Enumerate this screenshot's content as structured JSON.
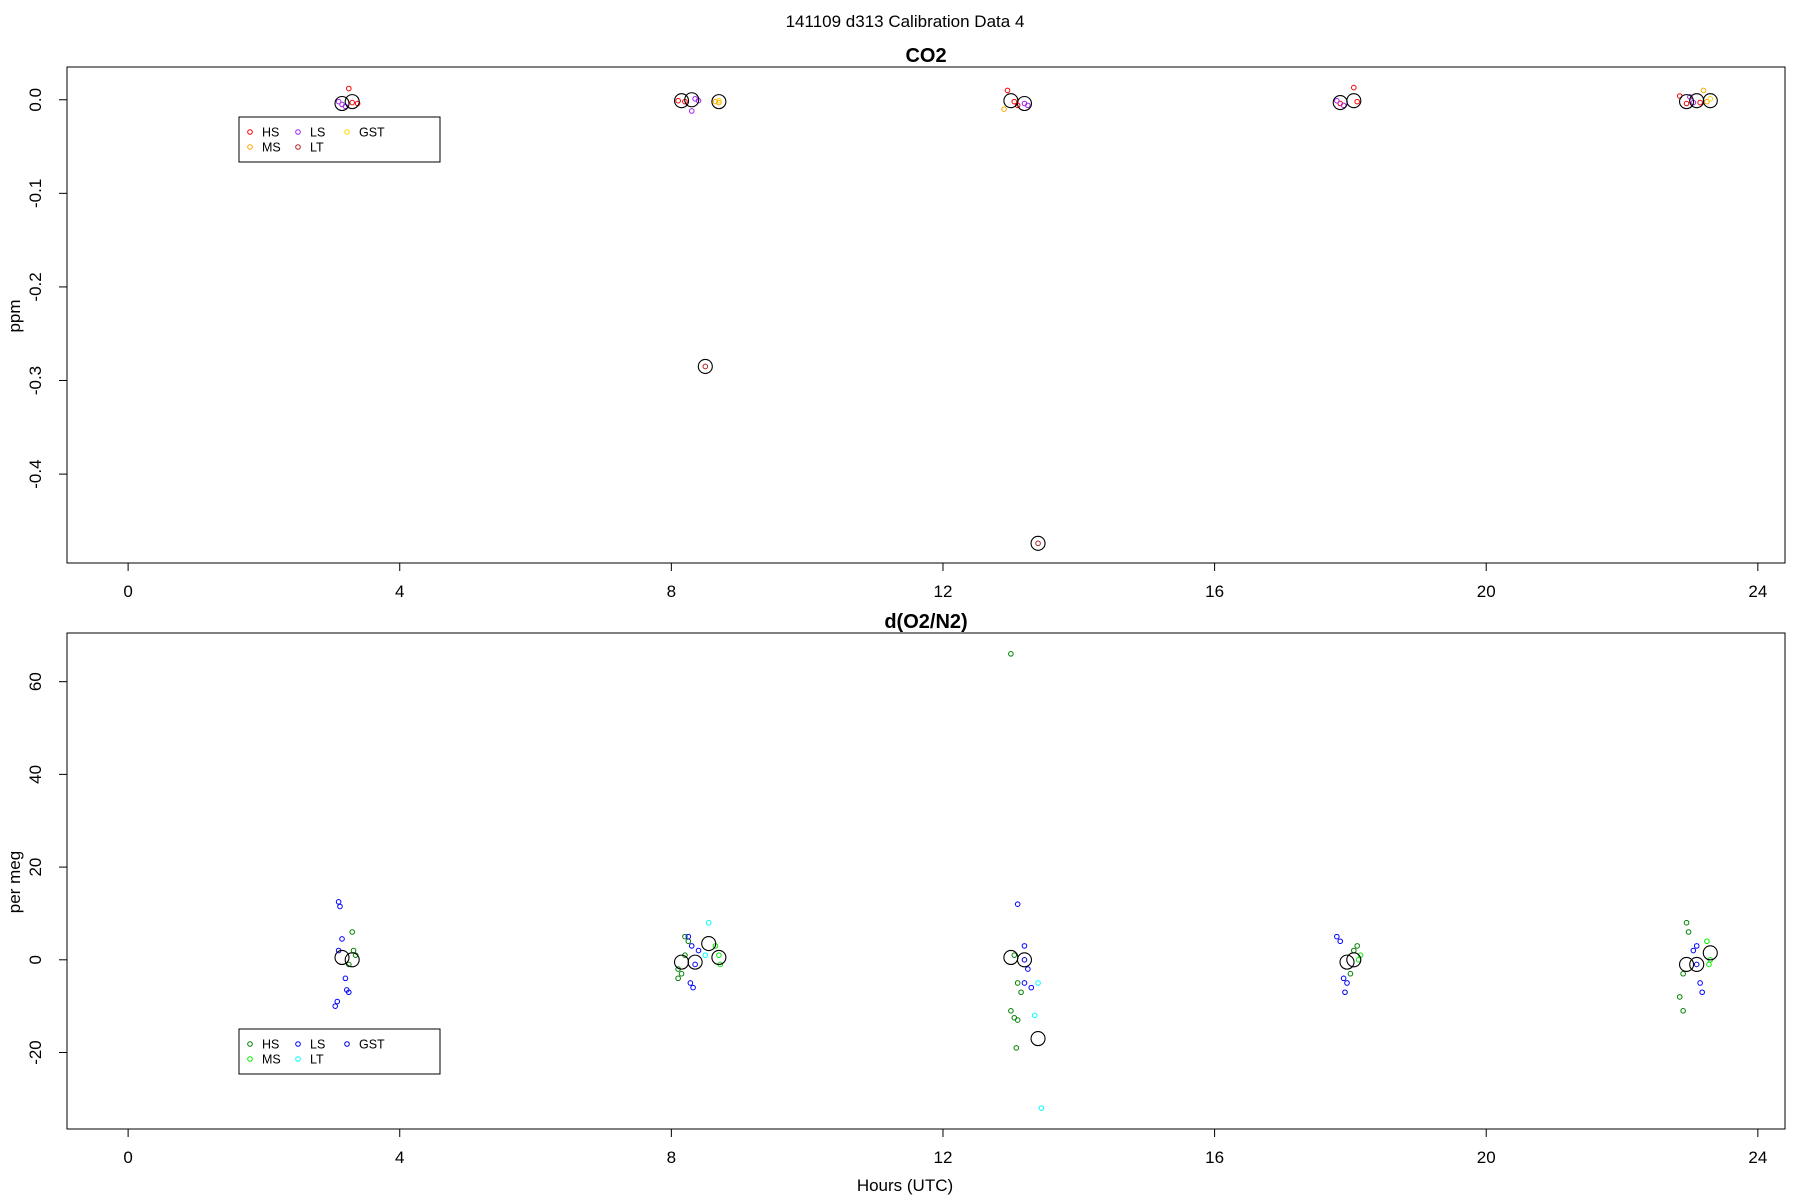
{
  "figure": {
    "title": "141109   d313   Calibration Data 4"
  },
  "chart_data": [
    {
      "type": "scatter",
      "title": "CO2",
      "xlabel": "",
      "ylabel": "ppm",
      "xlim": [
        -0.9,
        24.4
      ],
      "ylim": [
        -0.495,
        0.035
      ],
      "xticks": [
        0,
        4,
        8,
        12,
        16,
        20,
        24
      ],
      "yticks": [
        0.0,
        -0.1,
        -0.2,
        -0.3,
        -0.4
      ],
      "ytick_labels": [
        "0.0",
        "-0.1",
        "-0.2",
        "-0.3",
        "-0.4"
      ],
      "legend": {
        "position": "upper-left",
        "entries": [
          {
            "label": "HS",
            "color": "#ff0000"
          },
          {
            "label": "MS",
            "color": "#ffa500"
          },
          {
            "label": "LS",
            "color": "#a020f0"
          },
          {
            "label": "LT",
            "color": "#b22222"
          },
          {
            "label": "GST",
            "color": "#ffd700"
          }
        ]
      },
      "series": [
        {
          "name": "HS",
          "color": "#ff0000",
          "points": [
            [
              3.25,
              0.012
            ],
            [
              3.3,
              -0.003
            ],
            [
              3.38,
              -0.004
            ],
            [
              8.1,
              -0.001
            ],
            [
              8.2,
              -0.002
            ],
            [
              12.95,
              0.01
            ],
            [
              13.05,
              -0.002
            ],
            [
              13.1,
              -0.006
            ],
            [
              17.85,
              -0.004
            ],
            [
              18.05,
              0.013
            ],
            [
              18.1,
              -0.002
            ],
            [
              22.85,
              0.004
            ],
            [
              22.95,
              -0.004
            ],
            [
              23.15,
              -0.003
            ]
          ]
        },
        {
          "name": "MS",
          "color": "#ffa500",
          "points": [
            [
              8.65,
              -0.002
            ],
            [
              8.7,
              -0.003
            ],
            [
              12.9,
              -0.01
            ],
            [
              23.2,
              0.01
            ],
            [
              23.25,
              -0.002
            ]
          ]
        },
        {
          "name": "LS",
          "color": "#a020f0",
          "points": [
            [
              3.1,
              -0.002
            ],
            [
              3.15,
              -0.005
            ],
            [
              3.2,
              -0.007
            ],
            [
              8.3,
              -0.012
            ],
            [
              8.35,
              0.001
            ],
            [
              8.4,
              -0.001
            ],
            [
              13.2,
              -0.004
            ],
            [
              13.25,
              -0.006
            ],
            [
              17.8,
              -0.001
            ],
            [
              17.9,
              -0.006
            ],
            [
              23.0,
              0.003
            ],
            [
              23.05,
              -0.003
            ]
          ]
        },
        {
          "name": "LT",
          "color": "#b22222",
          "points": [
            [
              8.5,
              -0.285
            ],
            [
              13.4,
              -0.474
            ]
          ]
        },
        {
          "name": "GST",
          "color": "#ffd700",
          "points": [
            [
              8.7,
              -0.001
            ],
            [
              23.3,
              0.001
            ]
          ]
        },
        {
          "name": "",
          "color": "#000000",
          "large": true,
          "points": [
            [
              3.15,
              -0.004
            ],
            [
              3.3,
              -0.002
            ],
            [
              8.15,
              -0.001
            ],
            [
              8.3,
              0.0
            ],
            [
              8.5,
              -0.285
            ],
            [
              8.7,
              -0.002
            ],
            [
              13.0,
              -0.001
            ],
            [
              13.2,
              -0.004
            ],
            [
              13.4,
              -0.474
            ],
            [
              17.85,
              -0.003
            ],
            [
              18.05,
              -0.001
            ],
            [
              22.95,
              -0.002
            ],
            [
              23.1,
              -0.001
            ],
            [
              23.3,
              -0.001
            ]
          ]
        }
      ]
    },
    {
      "type": "scatter",
      "title": "d(O2/N2)",
      "xlabel": "Hours (UTC)",
      "ylabel": "per meg",
      "xlim": [
        -0.9,
        24.4
      ],
      "ylim": [
        -36.5,
        70.5
      ],
      "xticks": [
        0,
        4,
        8,
        12,
        16,
        20,
        24
      ],
      "yticks": [
        60,
        40,
        20,
        0,
        -20
      ],
      "ytick_labels": [
        "60",
        "40",
        "20",
        "0",
        "-20"
      ],
      "legend": {
        "position": "lower-left",
        "entries": [
          {
            "label": "HS",
            "color": "#008000"
          },
          {
            "label": "MS",
            "color": "#00ee00"
          },
          {
            "label": "LS",
            "color": "#0000ff"
          },
          {
            "label": "LT",
            "color": "#00ffff"
          },
          {
            "label": "GST",
            "color": "#0000cd"
          }
        ]
      },
      "series": [
        {
          "name": "HS",
          "color": "#008000",
          "points": [
            [
              3.3,
              6
            ],
            [
              3.32,
              2
            ],
            [
              3.35,
              1
            ],
            [
              3.25,
              -1
            ],
            [
              8.1,
              -2
            ],
            [
              8.15,
              -3
            ],
            [
              8.2,
              5
            ],
            [
              8.25,
              4
            ],
            [
              8.1,
              -4
            ],
            [
              8.2,
              1
            ],
            [
              13.0,
              66
            ],
            [
              13.05,
              1
            ],
            [
              13.1,
              -5
            ],
            [
              13.15,
              -7
            ],
            [
              13.0,
              -11
            ],
            [
              13.05,
              -12.5
            ],
            [
              13.08,
              -19
            ],
            [
              13.1,
              -13
            ],
            [
              18.05,
              2
            ],
            [
              18.1,
              3
            ],
            [
              18.0,
              -3
            ],
            [
              22.85,
              -8
            ],
            [
              22.9,
              -11
            ],
            [
              22.95,
              8
            ],
            [
              22.98,
              6
            ],
            [
              22.9,
              -3
            ]
          ]
        },
        {
          "name": "MS",
          "color": "#00ee00",
          "points": [
            [
              8.65,
              3
            ],
            [
              8.7,
              1
            ],
            [
              8.72,
              -1
            ],
            [
              18.15,
              1
            ],
            [
              18.12,
              0
            ],
            [
              23.25,
              4
            ],
            [
              23.3,
              0
            ],
            [
              23.28,
              -1
            ]
          ]
        },
        {
          "name": "LS",
          "color": "#0000ff",
          "points": [
            [
              3.1,
              12.5
            ],
            [
              3.12,
              11.5
            ],
            [
              3.15,
              4.5
            ],
            [
              3.2,
              -4
            ],
            [
              3.22,
              -6.5
            ],
            [
              3.25,
              -7
            ],
            [
              3.08,
              -9
            ],
            [
              3.05,
              -10
            ],
            [
              3.1,
              2
            ],
            [
              8.25,
              5
            ],
            [
              8.3,
              3
            ],
            [
              8.35,
              -1
            ],
            [
              8.28,
              -5
            ],
            [
              8.32,
              -6
            ],
            [
              8.4,
              2
            ],
            [
              13.1,
              12
            ],
            [
              13.2,
              3
            ],
            [
              13.25,
              -2
            ],
            [
              13.3,
              -6
            ],
            [
              13.2,
              -5
            ],
            [
              17.8,
              5
            ],
            [
              17.85,
              4
            ],
            [
              17.9,
              -4
            ],
            [
              17.92,
              -7
            ],
            [
              17.95,
              -5
            ],
            [
              23.05,
              2
            ],
            [
              23.1,
              3
            ],
            [
              23.15,
              -5
            ],
            [
              23.18,
              -7
            ]
          ]
        },
        {
          "name": "LT",
          "color": "#00ffff",
          "points": [
            [
              8.55,
              8
            ],
            [
              8.5,
              1
            ],
            [
              13.4,
              -5
            ],
            [
              13.35,
              -12
            ],
            [
              13.45,
              -32
            ]
          ]
        },
        {
          "name": "GST",
          "color": "#0000cd",
          "points": [
            [
              23.1,
              -1
            ],
            [
              13.2,
              0
            ]
          ]
        },
        {
          "name": "",
          "color": "#000000",
          "large": true,
          "points": [
            [
              3.15,
              0.5
            ],
            [
              3.3,
              0
            ],
            [
              8.15,
              -0.5
            ],
            [
              8.35,
              -0.5
            ],
            [
              8.55,
              3.5
            ],
            [
              8.7,
              0.5
            ],
            [
              13.0,
              0.5
            ],
            [
              13.2,
              0
            ],
            [
              13.4,
              -17
            ],
            [
              17.95,
              -0.5
            ],
            [
              18.05,
              0
            ],
            [
              22.95,
              -1
            ],
            [
              23.1,
              -1
            ],
            [
              23.3,
              1.5
            ]
          ]
        }
      ]
    }
  ]
}
